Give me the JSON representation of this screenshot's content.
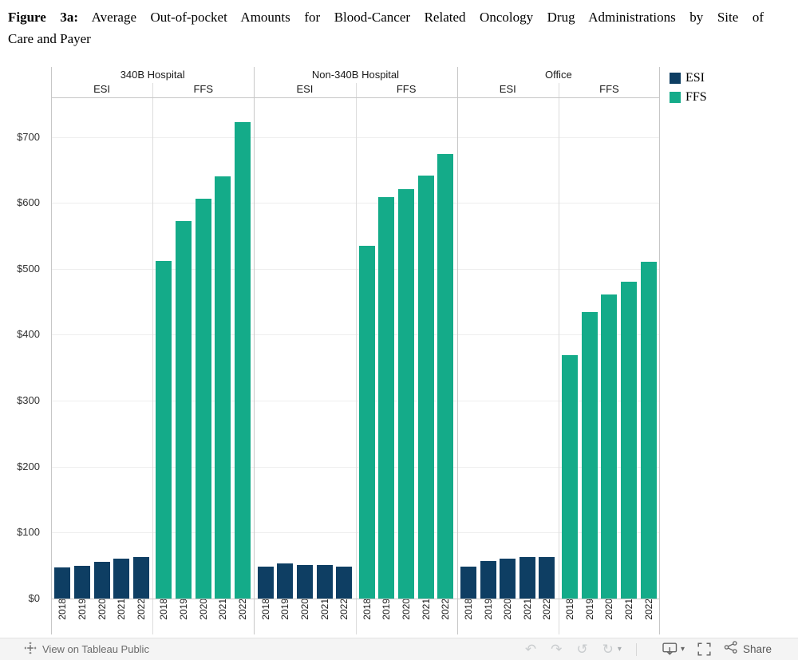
{
  "figure": {
    "label_bold": "Figure 3a:",
    "title_line1_rest": "Average Out-of-pocket Amounts for Blood-Cancer Related Oncology Drug Administrations by Site of",
    "title_line2": "Care and Payer"
  },
  "chart_data": {
    "type": "bar",
    "title": "Average Out-of-pocket Amounts for Blood-Cancer Related Oncology Drug Administrations by Site of Care and Payer",
    "sites": [
      "340B Hospital",
      "Non-340B Hospital",
      "Office"
    ],
    "payers": [
      "ESI",
      "FFS"
    ],
    "years": [
      "2018",
      "2019",
      "2020",
      "2021",
      "2022"
    ],
    "series": [
      {
        "site": "340B Hospital",
        "payer": "ESI",
        "values": [
          47,
          50,
          56,
          60,
          63
        ]
      },
      {
        "site": "340B Hospital",
        "payer": "FFS",
        "values": [
          512,
          572,
          606,
          640,
          723
        ]
      },
      {
        "site": "Non-340B Hospital",
        "payer": "ESI",
        "values": [
          49,
          53,
          51,
          51,
          49
        ]
      },
      {
        "site": "Non-340B Hospital",
        "payer": "FFS",
        "values": [
          535,
          609,
          621,
          642,
          674
        ]
      },
      {
        "site": "Office",
        "payer": "ESI",
        "values": [
          48,
          57,
          61,
          63,
          63
        ]
      },
      {
        "site": "Office",
        "payer": "FFS",
        "values": [
          369,
          434,
          461,
          480,
          511
        ]
      }
    ],
    "y_axis": {
      "tick_values": [
        0,
        100,
        200,
        300,
        400,
        500,
        600,
        700
      ],
      "tick_prefix": "$",
      "max": 760
    },
    "colors": {
      "ESI": "#0e3e63",
      "FFS": "#14ab89"
    },
    "grid": true,
    "legend_position": "top-right",
    "xlabel": "",
    "ylabel": ""
  },
  "legend": {
    "items": [
      {
        "label": "ESI",
        "color": "#0e3e63"
      },
      {
        "label": "FFS",
        "color": "#14ab89"
      }
    ]
  },
  "footer": {
    "view_link": "View on Tableau Public",
    "share_label": "Share",
    "icons": [
      "tableau-logo-icon",
      "undo-icon",
      "redo-icon",
      "replay-icon",
      "refresh-icon",
      "dropdown-caret-icon",
      "download-icon",
      "dropdown-caret-icon",
      "fullscreen-icon",
      "share-icon"
    ]
  }
}
